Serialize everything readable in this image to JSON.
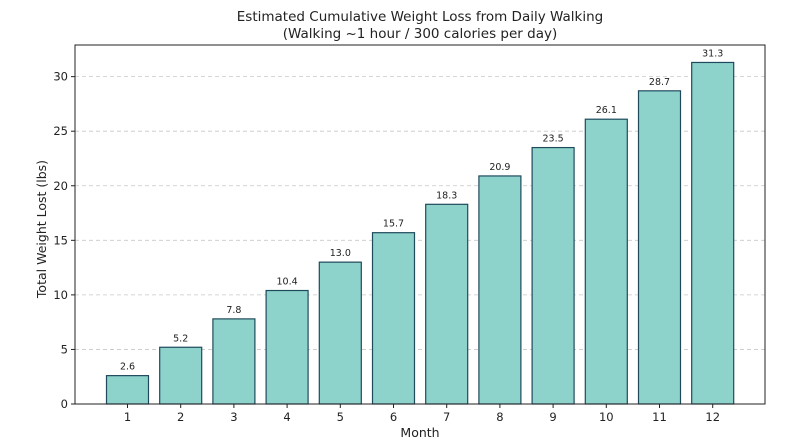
{
  "chart_data": {
    "type": "bar",
    "title": "Estimated Cumulative Weight Loss from Daily Walking",
    "subtitle": "(Walking ~1 hour / 300 calories per day)",
    "xlabel": "Month",
    "ylabel": "Total Weight Lost (lbs)",
    "categories": [
      "1",
      "2",
      "3",
      "4",
      "5",
      "6",
      "7",
      "8",
      "9",
      "10",
      "11",
      "12"
    ],
    "values": [
      2.6,
      5.2,
      7.8,
      10.4,
      13.0,
      15.7,
      18.3,
      20.9,
      23.5,
      26.1,
      28.7,
      31.3
    ],
    "data_labels": [
      "2.6",
      "5.2",
      "7.8",
      "10.4",
      "13.0",
      "15.7",
      "18.3",
      "20.9",
      "23.5",
      "26.1",
      "28.7",
      "31.3"
    ],
    "ylim": [
      0,
      32.9
    ],
    "yticks": [
      0,
      5,
      10,
      15,
      20,
      25,
      30
    ],
    "grid": "horizontal dashed",
    "legend": "none",
    "colors": {
      "bar_fill": "#8dd3cc",
      "bar_edge": "#1f4a5c",
      "grid": "#c8c8c8",
      "axis": "#222222"
    }
  }
}
